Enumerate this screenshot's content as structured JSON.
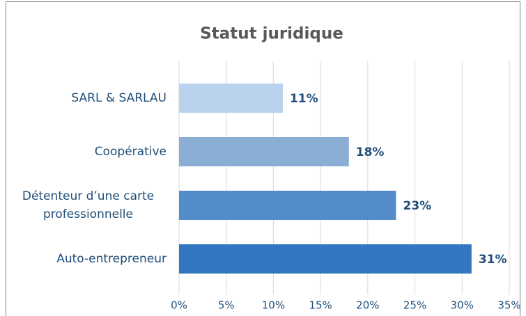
{
  "chart_data": {
    "type": "bar",
    "orientation": "horizontal",
    "title": "Statut juridique",
    "categories": [
      "SARL & SARLAU",
      "Coopérative",
      "Détenteur d’une carte professionnelle",
      "Auto-entrepreneur"
    ],
    "values": [
      11,
      18,
      23,
      31
    ],
    "value_labels": [
      "11%",
      "18%",
      "23%",
      "31%"
    ],
    "colors": [
      "#b9d2ee",
      "#8aaed4",
      "#548ccb",
      "#3276bf"
    ],
    "xlim": [
      0,
      35
    ],
    "xticks": [
      {
        "value": 0,
        "label": "0%"
      },
      {
        "value": 5,
        "label": "5%"
      },
      {
        "value": 10,
        "label": "10%"
      },
      {
        "value": 15,
        "label": "15%"
      },
      {
        "value": 20,
        "label": "20%"
      },
      {
        "value": 25,
        "label": "25%"
      },
      {
        "value": 30,
        "label": "30%"
      },
      {
        "value": 35,
        "label": "35%"
      }
    ],
    "grid": true
  }
}
